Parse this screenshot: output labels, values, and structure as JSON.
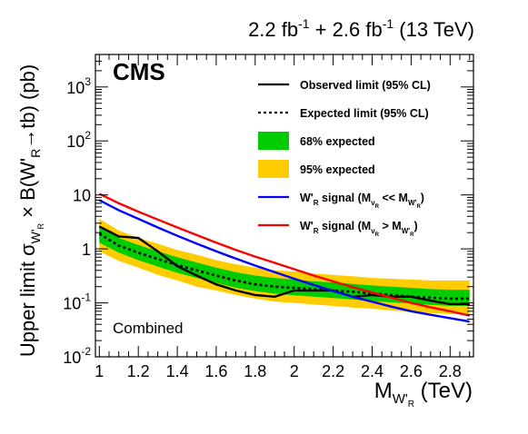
{
  "chart_data": {
    "type": "line",
    "header_parts": [
      "2.2 fb",
      "-1",
      " + 2.6 fb",
      "-1",
      " (13 TeV)"
    ],
    "experiment": "CMS",
    "region_label": "Combined",
    "xlabel_parts": [
      "M",
      "W'",
      "R",
      " (TeV)"
    ],
    "ylabel_parts": [
      "Upper limit σ",
      "W'",
      "R",
      " × B(W'",
      "R",
      "→tb) (pb)"
    ],
    "xlim": [
      0.98,
      2.92
    ],
    "ylim": [
      0.01,
      4000
    ],
    "yscale": "log",
    "x_ticks": [
      "1",
      "1.2",
      "1.4",
      "1.6",
      "1.8",
      "2",
      "2.2",
      "2.4",
      "2.6",
      "2.8"
    ],
    "y_ticks": [
      {
        "base": "10",
        "exp": "-2"
      },
      {
        "base": "10",
        "exp": "-1"
      },
      {
        "base": "1",
        "exp": ""
      },
      {
        "base": "10",
        "exp": ""
      },
      {
        "base": "10",
        "exp": "2"
      },
      {
        "base": "10",
        "exp": "3"
      }
    ],
    "legend_position": "top-right",
    "legend": [
      {
        "kind": "solid-line",
        "label": "Observed limit (95% CL)",
        "color": "#000000"
      },
      {
        "kind": "dashed-line",
        "label": "Expected limit (95% CL)",
        "color": "#000000"
      },
      {
        "kind": "box",
        "label": "68% expected",
        "color": "#00cc00"
      },
      {
        "kind": "box",
        "label": "95% expected",
        "color": "#ffcc00"
      },
      {
        "kind": "solid-line",
        "label_parts": [
          "W'",
          "R",
          " signal (M",
          "ν",
          "R",
          " << M",
          "W'",
          "R",
          ")"
        ],
        "color": "#0000ff"
      },
      {
        "kind": "solid-line",
        "label_parts": [
          "W'",
          "R",
          " signal (M",
          "ν",
          "R",
          " > M",
          "W'",
          "R",
          ")"
        ],
        "color": "#ff0000"
      }
    ],
    "x": [
      1.0,
      1.1,
      1.2,
      1.3,
      1.4,
      1.5,
      1.6,
      1.7,
      1.8,
      1.9,
      2.0,
      2.1,
      2.2,
      2.3,
      2.4,
      2.5,
      2.6,
      2.7,
      2.8,
      2.9
    ],
    "series": [
      {
        "name": "Observed limit (95% CL)",
        "color": "#000000",
        "style": "solid",
        "values": [
          2.6,
          1.7,
          1.6,
          0.9,
          0.48,
          0.32,
          0.22,
          0.17,
          0.14,
          0.13,
          0.17,
          0.17,
          0.17,
          0.13,
          0.14,
          0.13,
          0.13,
          0.11,
          0.095,
          0.095
        ]
      },
      {
        "name": "Expected limit (95% CL)",
        "color": "#000000",
        "style": "dashed",
        "values": [
          1.9,
          1.15,
          0.85,
          0.65,
          0.5,
          0.4,
          0.32,
          0.26,
          0.22,
          0.2,
          0.19,
          0.18,
          0.17,
          0.16,
          0.15,
          0.14,
          0.13,
          0.125,
          0.12,
          0.12
        ]
      },
      {
        "name": "W'R signal (MνR << MW'R)",
        "color": "#0000ff",
        "style": "solid",
        "values": [
          8.0,
          5.2,
          3.6,
          2.5,
          1.75,
          1.25,
          0.9,
          0.66,
          0.49,
          0.37,
          0.28,
          0.215,
          0.165,
          0.13,
          0.105,
          0.085,
          0.07,
          0.06,
          0.052,
          0.045
        ]
      },
      {
        "name": "W'R signal (MνR > MW'R)",
        "color": "#ff0000",
        "style": "solid",
        "values": [
          10.5,
          7.0,
          4.9,
          3.5,
          2.5,
          1.8,
          1.3,
          0.96,
          0.72,
          0.55,
          0.42,
          0.32,
          0.25,
          0.195,
          0.155,
          0.125,
          0.1,
          0.083,
          0.07,
          0.058
        ]
      }
    ],
    "bands": [
      {
        "name": "95% expected",
        "color": "#ffcc00",
        "low": [
          0.9,
          0.6,
          0.45,
          0.33,
          0.26,
          0.2,
          0.17,
          0.14,
          0.12,
          0.105,
          0.1,
          0.093,
          0.088,
          0.082,
          0.078,
          0.072,
          0.068,
          0.065,
          0.062,
          0.062
        ],
        "high": [
          3.6,
          2.2,
          1.6,
          1.25,
          0.95,
          0.78,
          0.62,
          0.52,
          0.45,
          0.4,
          0.38,
          0.35,
          0.33,
          0.31,
          0.29,
          0.28,
          0.27,
          0.26,
          0.26,
          0.26
        ]
      },
      {
        "name": "68% expected",
        "color": "#00cc00",
        "low": [
          1.3,
          0.85,
          0.62,
          0.47,
          0.36,
          0.29,
          0.235,
          0.19,
          0.165,
          0.148,
          0.138,
          0.13,
          0.123,
          0.115,
          0.108,
          0.102,
          0.097,
          0.092,
          0.088,
          0.088
        ],
        "high": [
          2.6,
          1.6,
          1.18,
          0.9,
          0.7,
          0.56,
          0.45,
          0.37,
          0.32,
          0.29,
          0.27,
          0.25,
          0.24,
          0.225,
          0.21,
          0.2,
          0.19,
          0.18,
          0.175,
          0.175
        ]
      }
    ]
  }
}
